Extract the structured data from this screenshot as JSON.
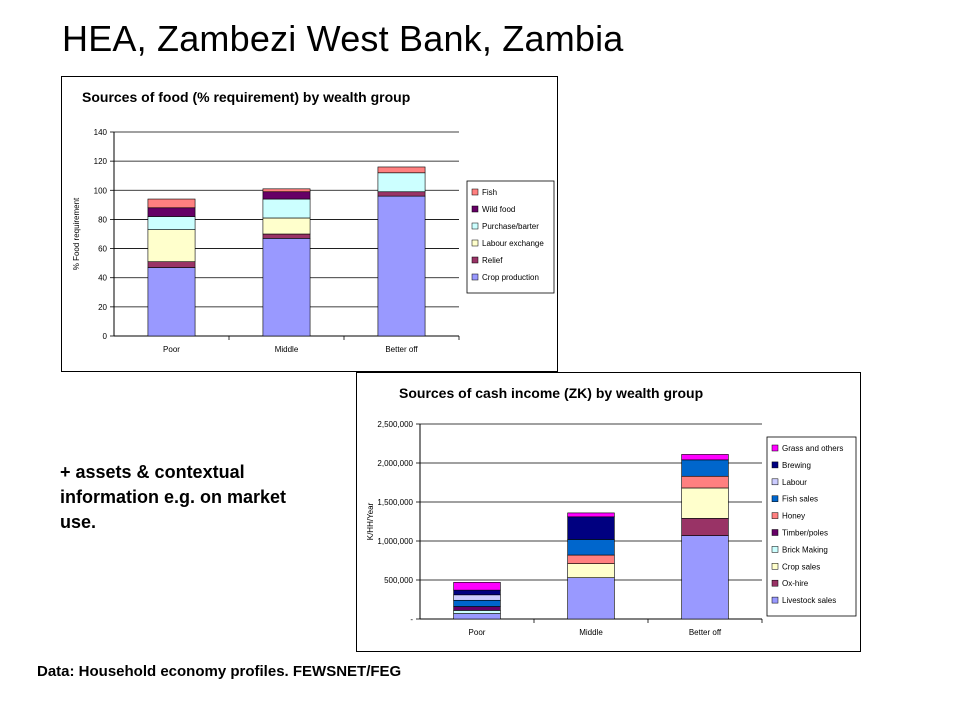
{
  "slide": {
    "title": "HEA, Zambezi West Bank, Zambia",
    "note": "+ assets & contextual information e.g. on market use.",
    "source": "Data: Household economy profiles. FEWSNET/FEG"
  },
  "chart_data": [
    {
      "type": "bar",
      "stacked": true,
      "title": "Sources of food (% requirement) by wealth group",
      "xlabel": "",
      "ylabel": "% Food requirement",
      "categories": [
        "Poor",
        "Middle",
        "Better off"
      ],
      "ylim": [
        0,
        140
      ],
      "yticks": [
        0,
        20,
        40,
        60,
        80,
        100,
        120,
        140
      ],
      "ytick_labels": [
        "0",
        "20",
        "40",
        "60",
        "80",
        "100",
        "120",
        "140"
      ],
      "grid": true,
      "legend_position": "right",
      "series": [
        {
          "name": "Crop production",
          "color": "#9999FF",
          "values": [
            47,
            67,
            96
          ]
        },
        {
          "name": "Relief",
          "color": "#993366",
          "values": [
            4,
            3,
            3
          ]
        },
        {
          "name": "Labour exchange",
          "color": "#FFFFCC",
          "values": [
            22,
            11,
            0
          ]
        },
        {
          "name": "Purchase/barter",
          "color": "#CCFFFF",
          "values": [
            9,
            13,
            13
          ]
        },
        {
          "name": "Wild food",
          "color": "#660066",
          "values": [
            6,
            5,
            0
          ]
        },
        {
          "name": "Fish",
          "color": "#FF8080",
          "values": [
            6,
            2,
            4
          ]
        }
      ]
    },
    {
      "type": "bar",
      "stacked": true,
      "title": "Sources of cash income (ZK) by wealth group",
      "xlabel": "",
      "ylabel": "K/HH/Year",
      "categories": [
        "Poor",
        "Middle",
        "Better off"
      ],
      "ylim": [
        0,
        2500000
      ],
      "yticks": [
        0,
        500000,
        1000000,
        1500000,
        2000000,
        2500000
      ],
      "ytick_labels": [
        "-",
        "500,000",
        "1,000,000",
        "1,500,000",
        "2,000,000",
        "2,500,000"
      ],
      "grid": true,
      "legend_position": "right",
      "series": [
        {
          "name": "Livestock sales",
          "color": "#9999FF",
          "values": [
            70000,
            530000,
            1070000
          ]
        },
        {
          "name": "Ox-hire",
          "color": "#993366",
          "values": [
            0,
            0,
            220000
          ]
        },
        {
          "name": "Crop sales",
          "color": "#FFFFCC",
          "values": [
            0,
            180000,
            390000
          ]
        },
        {
          "name": "Brick Making",
          "color": "#CCFFFF",
          "values": [
            40000,
            0,
            0
          ]
        },
        {
          "name": "Timber/poles",
          "color": "#660066",
          "values": [
            50000,
            0,
            0
          ]
        },
        {
          "name": "Honey",
          "color": "#FF8080",
          "values": [
            0,
            110000,
            150000
          ]
        },
        {
          "name": "Fish sales",
          "color": "#0066CC",
          "values": [
            80000,
            200000,
            210000
          ]
        },
        {
          "name": "Labour",
          "color": "#CCCCFF",
          "values": [
            70000,
            0,
            0
          ]
        },
        {
          "name": "Brewing",
          "color": "#000080",
          "values": [
            60000,
            290000,
            0
          ]
        },
        {
          "name": "Grass and others",
          "color": "#FF00FF",
          "values": [
            100000,
            50000,
            70000
          ]
        }
      ]
    }
  ]
}
